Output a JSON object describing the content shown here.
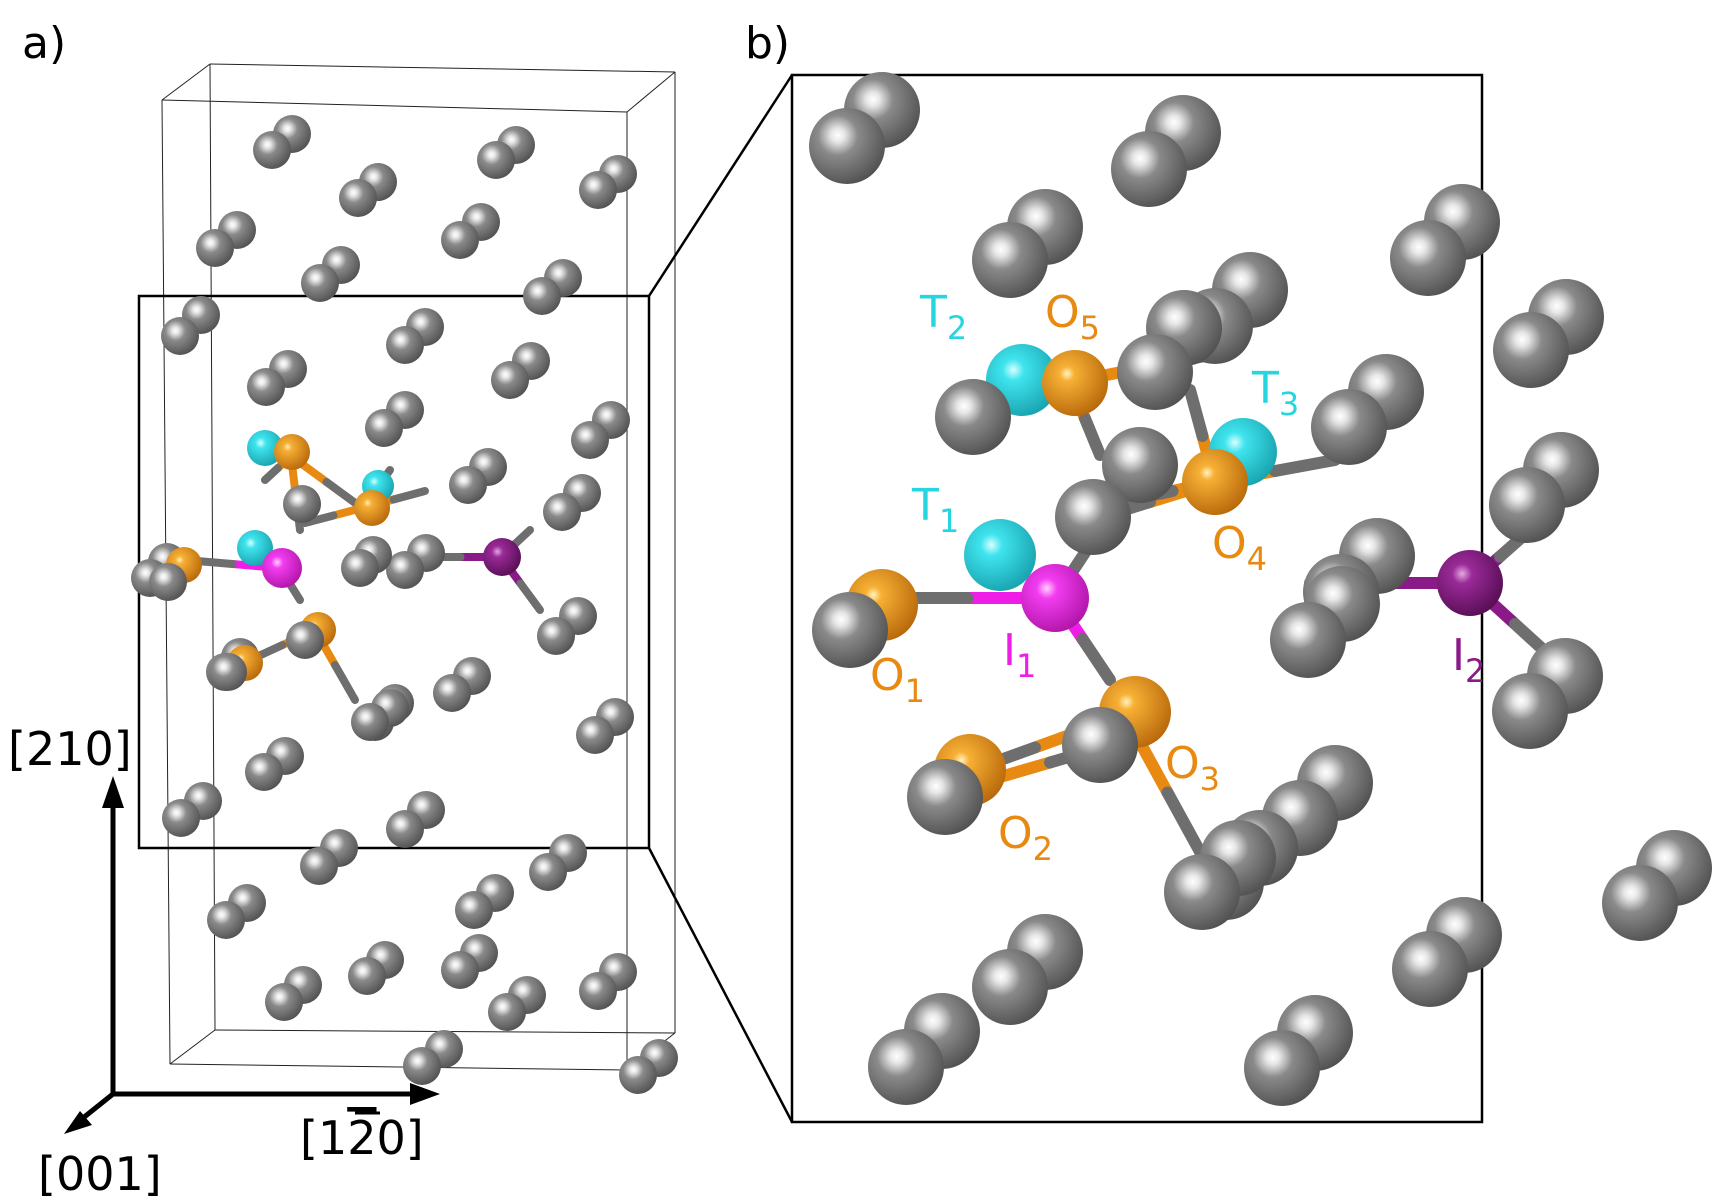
{
  "panels": {
    "a": {
      "label": "a)"
    },
    "b": {
      "label": "b)"
    }
  },
  "axes": {
    "vertical": "[210]",
    "horizontal_prefix": "[1",
    "horizontal_bar": "2",
    "horizontal_suffix": "0]",
    "depth": "[001]"
  },
  "colors": {
    "atom": "#6e6e6e",
    "octahedral": "#e88a12",
    "tetrahedral": "#25d5e0",
    "interstitial_1": "#ee1ee6",
    "interstitial_2": "#8a1a88",
    "frame": "#000000"
  },
  "sites": [
    {
      "id": "T2",
      "letter": "T",
      "sub": "2",
      "color": "#25d5e0"
    },
    {
      "id": "O5",
      "letter": "O",
      "sub": "5",
      "color": "#e88a12"
    },
    {
      "id": "T3",
      "letter": "T",
      "sub": "3",
      "color": "#25d5e0"
    },
    {
      "id": "T1",
      "letter": "T",
      "sub": "1",
      "color": "#25d5e0"
    },
    {
      "id": "O4",
      "letter": "O",
      "sub": "4",
      "color": "#e88a12"
    },
    {
      "id": "I1",
      "letter": "I",
      "sub": "1",
      "color": "#ee1ee6"
    },
    {
      "id": "I2",
      "letter": "I",
      "sub": "2",
      "color": "#8a1a88"
    },
    {
      "id": "O1",
      "letter": "O",
      "sub": "1",
      "color": "#e88a12"
    },
    {
      "id": "O3",
      "letter": "O",
      "sub": "3",
      "color": "#e88a12"
    },
    {
      "id": "O2",
      "letter": "O",
      "sub": "2",
      "color": "#e88a12"
    }
  ]
}
